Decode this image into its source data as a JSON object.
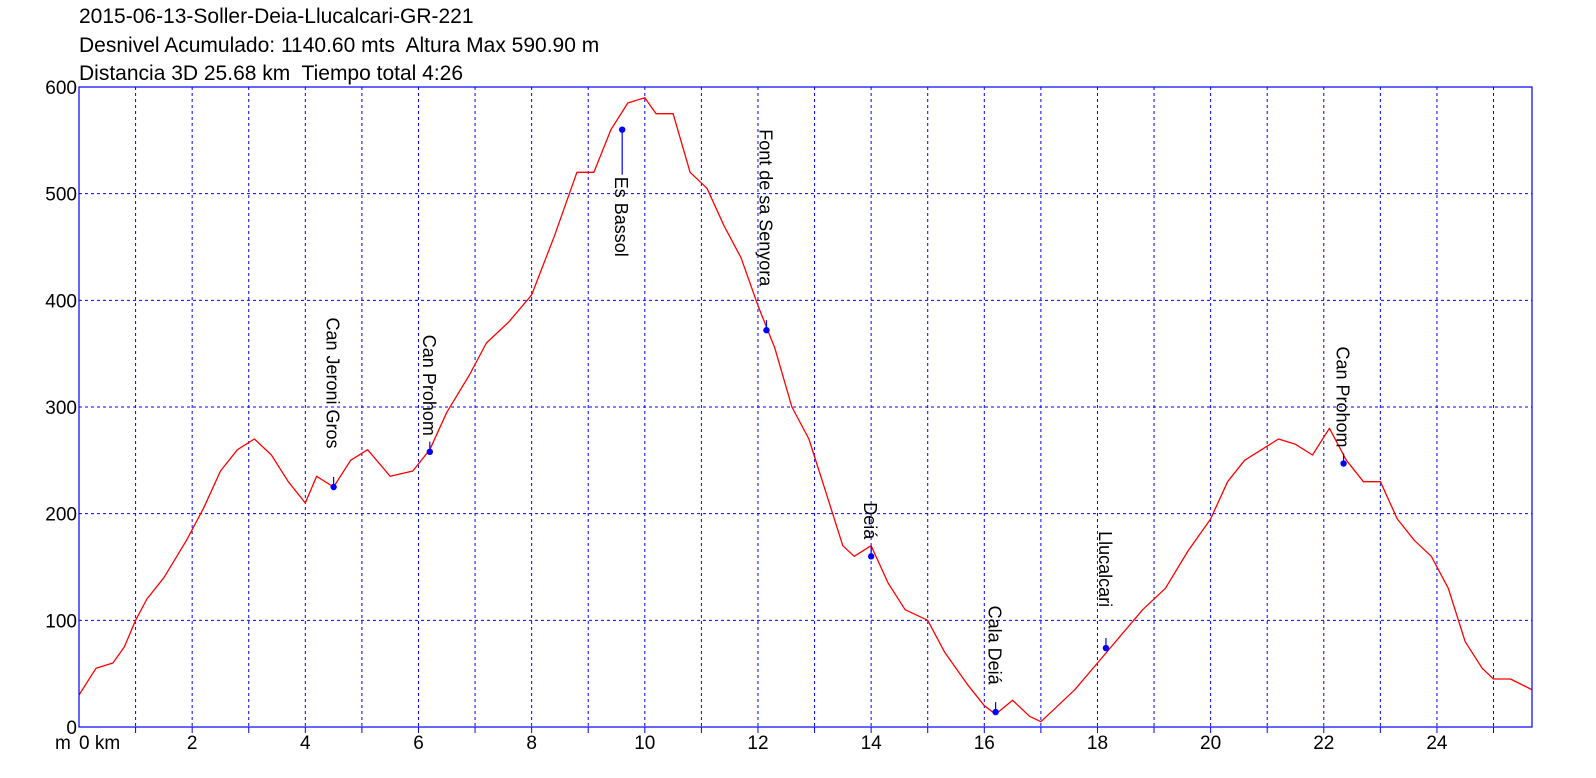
{
  "header": {
    "line1": "2015-06-13-Soller-Deia-Llucalcari-GR-221",
    "line2": "Desnivel Acumulado: 1140.60 mts  Altura Max 590.90 m",
    "line3": "Distancia 3D 25.68 km  Tiempo total 4:26"
  },
  "chart_data": {
    "type": "line",
    "title": "2015-06-13-Soller-Deia-Llucalcari-GR-221",
    "xlabel": "km",
    "ylabel": "m",
    "xlim": [
      0,
      25.68
    ],
    "ylim": [
      0,
      600
    ],
    "x_ticks": [
      0,
      2,
      4,
      6,
      8,
      10,
      12,
      14,
      16,
      18,
      20,
      22,
      24
    ],
    "x_tick_labels": [
      "0 km",
      "2",
      "4",
      "6",
      "8",
      "10",
      "12",
      "14",
      "16",
      "18",
      "20",
      "22",
      "24"
    ],
    "y_ticks": [
      0,
      100,
      200,
      300,
      400,
      500,
      600
    ],
    "y_tick_labels": [
      "0",
      "100",
      "200",
      "300",
      "400",
      "500",
      "600"
    ],
    "grid": true,
    "series": [
      {
        "color": "#ff0000",
        "x": [
          0,
          0.3,
          0.6,
          0.8,
          1.0,
          1.2,
          1.5,
          1.9,
          2.2,
          2.5,
          2.8,
          3.1,
          3.4,
          3.7,
          4.0,
          4.2,
          4.5,
          4.8,
          5.1,
          5.5,
          5.9,
          6.2,
          6.5,
          6.9,
          7.2,
          7.6,
          8.0,
          8.4,
          8.8,
          9.1,
          9.4,
          9.7,
          10.0,
          10.2,
          10.5,
          10.8,
          11.1,
          11.4,
          11.7,
          12.0,
          12.3,
          12.6,
          12.9,
          13.2,
          13.5,
          13.7,
          14.0,
          14.3,
          14.6,
          15.0,
          15.3,
          15.7,
          16.0,
          16.2,
          16.5,
          16.8,
          17.0,
          17.3,
          17.6,
          18.0,
          18.4,
          18.8,
          19.2,
          19.6,
          20.0,
          20.3,
          20.6,
          20.9,
          21.2,
          21.5,
          21.8,
          22.1,
          22.4,
          22.7,
          23.0,
          23.3,
          23.6,
          23.9,
          24.2,
          24.5,
          24.8,
          25.0,
          25.3,
          25.68
        ],
        "y": [
          30,
          55,
          60,
          75,
          100,
          120,
          140,
          175,
          205,
          240,
          260,
          270,
          255,
          230,
          210,
          235,
          225,
          250,
          260,
          235,
          240,
          260,
          295,
          330,
          360,
          380,
          405,
          460,
          520,
          520,
          560,
          585,
          590,
          575,
          575,
          520,
          505,
          470,
          440,
          395,
          355,
          300,
          270,
          220,
          170,
          160,
          170,
          135,
          110,
          100,
          70,
          40,
          20,
          12,
          25,
          10,
          5,
          20,
          35,
          60,
          85,
          110,
          130,
          165,
          195,
          230,
          250,
          260,
          270,
          265,
          255,
          280,
          250,
          230,
          230,
          195,
          175,
          160,
          130,
          80,
          55,
          45,
          45,
          35
        ]
      }
    ],
    "annotations": [
      {
        "label": "Can Jeroni Gros",
        "x": 4.5,
        "y": 225
      },
      {
        "label": "Can Prohom",
        "x": 6.2,
        "y": 258
      },
      {
        "label": "Es Bassol",
        "x": 9.6,
        "y": 560
      },
      {
        "label": "Font de sa Senyora",
        "x": 12.15,
        "y": 372
      },
      {
        "label": "Deiá",
        "x": 14.0,
        "y": 160
      },
      {
        "label": "Cala Deiá",
        "x": 16.2,
        "y": 14
      },
      {
        "label": "Llucalcari",
        "x": 18.15,
        "y": 74
      },
      {
        "label": "Can Prohom",
        "x": 22.35,
        "y": 247
      }
    ],
    "colors": {
      "line": "#ff0000",
      "grid": "#0000ff",
      "marker": "#0000ff",
      "frame": "#0000ff"
    }
  }
}
